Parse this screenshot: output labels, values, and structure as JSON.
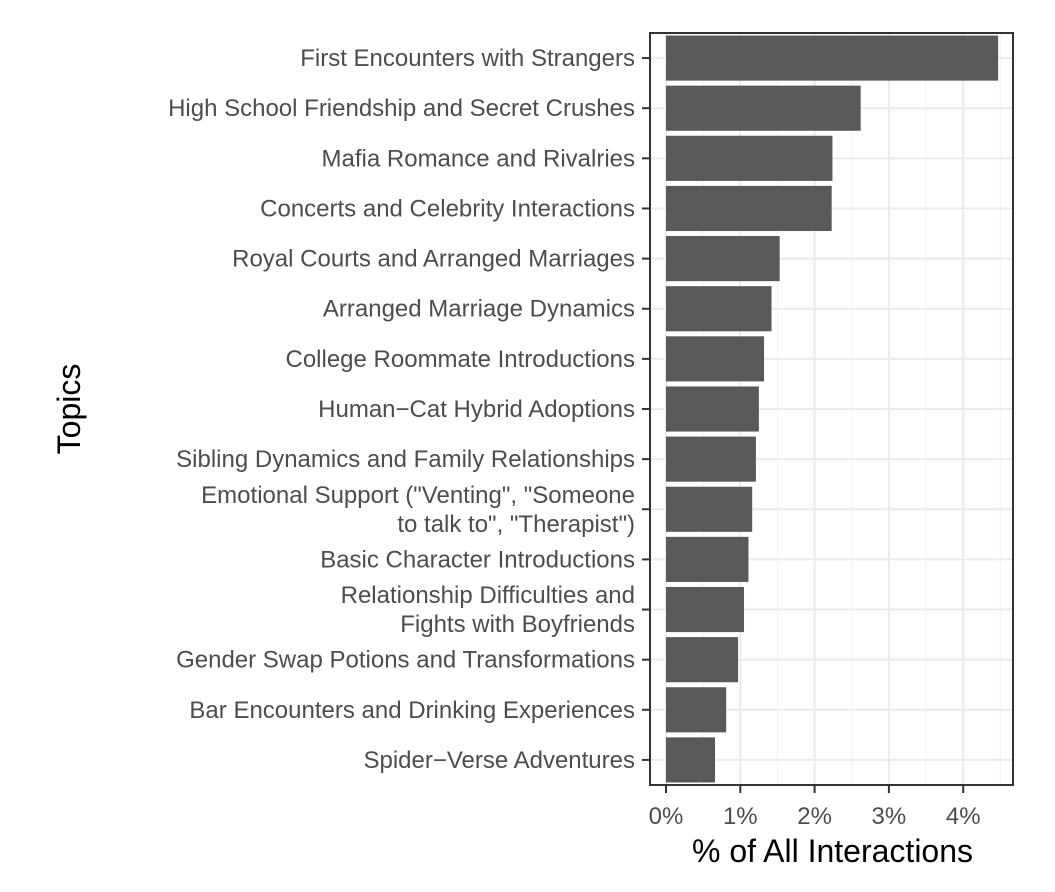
{
  "chart_data": {
    "type": "bar",
    "orientation": "horizontal",
    "xlabel": "% of All Interactions",
    "ylabel": "Topics",
    "xlim": [
      0,
      4.7
    ],
    "x_ticks": [
      "0%",
      "1%",
      "2%",
      "3%",
      "4%"
    ],
    "x_tick_values": [
      0,
      1,
      2,
      3,
      4
    ],
    "grid": true,
    "bar_color": "#595959",
    "categories": [
      {
        "label": [
          "First Encounters with Strangers"
        ],
        "value": 4.47
      },
      {
        "label": [
          "High School Friendship and Secret Crushes"
        ],
        "value": 2.62
      },
      {
        "label": [
          "Mafia Romance and Rivalries"
        ],
        "value": 2.24
      },
      {
        "label": [
          "Concerts and Celebrity Interactions"
        ],
        "value": 2.23
      },
      {
        "label": [
          "Royal Courts and Arranged Marriages"
        ],
        "value": 1.53
      },
      {
        "label": [
          "Arranged Marriage Dynamics"
        ],
        "value": 1.42
      },
      {
        "label": [
          "College Roommate Introductions"
        ],
        "value": 1.32
      },
      {
        "label": [
          "Human−Cat Hybrid Adoptions"
        ],
        "value": 1.25
      },
      {
        "label": [
          "Sibling Dynamics and Family Relationships"
        ],
        "value": 1.21
      },
      {
        "label": [
          "Emotional Support (\"Venting\", \"Someone",
          "to talk to\", \"Therapist\")"
        ],
        "value": 1.16
      },
      {
        "label": [
          "Basic Character Introductions"
        ],
        "value": 1.11
      },
      {
        "label": [
          "Relationship Difficulties and",
          "Fights with Boyfriends"
        ],
        "value": 1.05
      },
      {
        "label": [
          "Gender Swap Potions and Transformations"
        ],
        "value": 0.97
      },
      {
        "label": [
          "Bar Encounters and Drinking Experiences"
        ],
        "value": 0.81
      },
      {
        "label": [
          "Spider−Verse Adventures"
        ],
        "value": 0.66
      }
    ]
  }
}
